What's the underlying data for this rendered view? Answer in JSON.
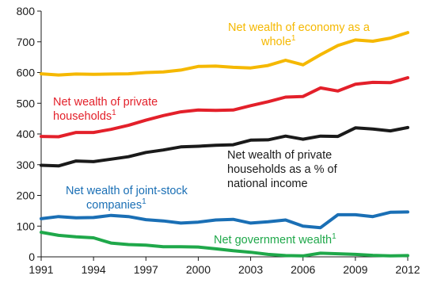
{
  "chart_data": {
    "type": "line",
    "title": "",
    "xlabel": "",
    "ylabel": "",
    "ylim": [
      0,
      800
    ],
    "xlim": [
      1991,
      2012
    ],
    "yticks": [
      "0",
      "100",
      "200",
      "300",
      "400",
      "500",
      "600",
      "700",
      "800"
    ],
    "xticks": [
      "1991",
      "1994",
      "1997",
      "2000",
      "2003",
      "2006",
      "2009",
      "2012"
    ],
    "grid": false,
    "x": [
      1991,
      1992,
      1993,
      1994,
      1995,
      1996,
      1997,
      1998,
      1999,
      2000,
      2001,
      2002,
      2003,
      2004,
      2005,
      2006,
      2007,
      2008,
      2009,
      2010,
      2011,
      2012
    ],
    "series": [
      {
        "key": "economy",
        "label_lines": [
          "Net wealth of economy as a",
          "whole"
        ],
        "superscript": "1",
        "color": "#F5B800",
        "values": [
          596,
          592,
          595,
          594,
          595,
          596,
          600,
          602,
          608,
          620,
          621,
          617,
          615,
          623,
          640,
          625,
          658,
          688,
          706,
          702,
          712,
          730
        ]
      },
      {
        "key": "households",
        "label_lines": [
          "Net wealth of private",
          "households"
        ],
        "superscript": "1",
        "color": "#E3202A",
        "values": [
          392,
          391,
          405,
          405,
          415,
          428,
          445,
          460,
          472,
          478,
          477,
          478,
          492,
          505,
          520,
          522,
          550,
          540,
          562,
          568,
          567,
          583
        ]
      },
      {
        "key": "households_pct",
        "label_lines": [
          "Net wealth of private",
          "households as a % of",
          "national income"
        ],
        "superscript": "",
        "color": "#1a1a1a",
        "values": [
          298,
          296,
          312,
          310,
          318,
          326,
          340,
          348,
          358,
          360,
          363,
          365,
          380,
          381,
          393,
          383,
          393,
          392,
          420,
          416,
          410,
          421
        ]
      },
      {
        "key": "jointstock",
        "label_lines": [
          "Net wealth of joint-stock",
          "companies"
        ],
        "superscript": "1",
        "color": "#1A6FB5",
        "values": [
          124,
          131,
          127,
          128,
          135,
          131,
          121,
          117,
          110,
          113,
          120,
          122,
          110,
          114,
          120,
          100,
          95,
          137,
          137,
          131,
          145,
          146
        ]
      },
      {
        "key": "government",
        "label_lines": [
          "Net government wealth"
        ],
        "superscript": "1",
        "color": "#1FA84A",
        "values": [
          80,
          70,
          65,
          62,
          45,
          40,
          38,
          33,
          33,
          32,
          26,
          20,
          15,
          8,
          4,
          3,
          12,
          10,
          8,
          5,
          3,
          4
        ]
      }
    ]
  }
}
